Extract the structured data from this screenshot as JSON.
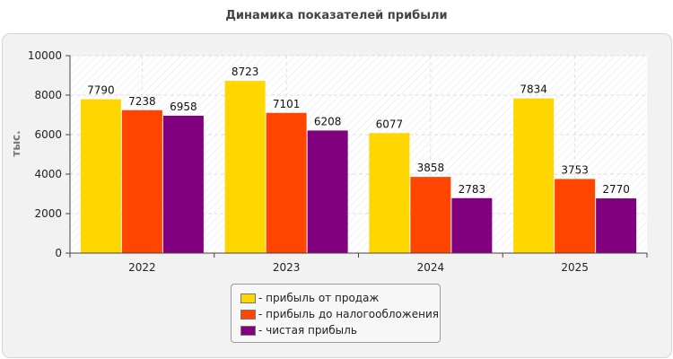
{
  "chart_data": {
    "type": "bar",
    "title": "Динамика показателей прибыли",
    "ylabel": "тыс.",
    "xlabel": "",
    "categories": [
      "2022",
      "2023",
      "2024",
      "2025"
    ],
    "ylim": [
      0,
      10000
    ],
    "yticks": [
      0,
      2000,
      4000,
      6000,
      8000,
      10000
    ],
    "grid": true,
    "legend_position": "bottom",
    "series": [
      {
        "name": "прибыль от продаж",
        "color": "#FFD700",
        "values": [
          7790,
          8723,
          6077,
          7834
        ]
      },
      {
        "name": "прибыль до налогообложения",
        "color": "#FF4500",
        "values": [
          7238,
          7101,
          3858,
          3753
        ]
      },
      {
        "name": "чистая прибыль",
        "color": "#800080",
        "values": [
          6958,
          6208,
          2783,
          2770
        ]
      }
    ]
  },
  "legend_prefix": "- "
}
